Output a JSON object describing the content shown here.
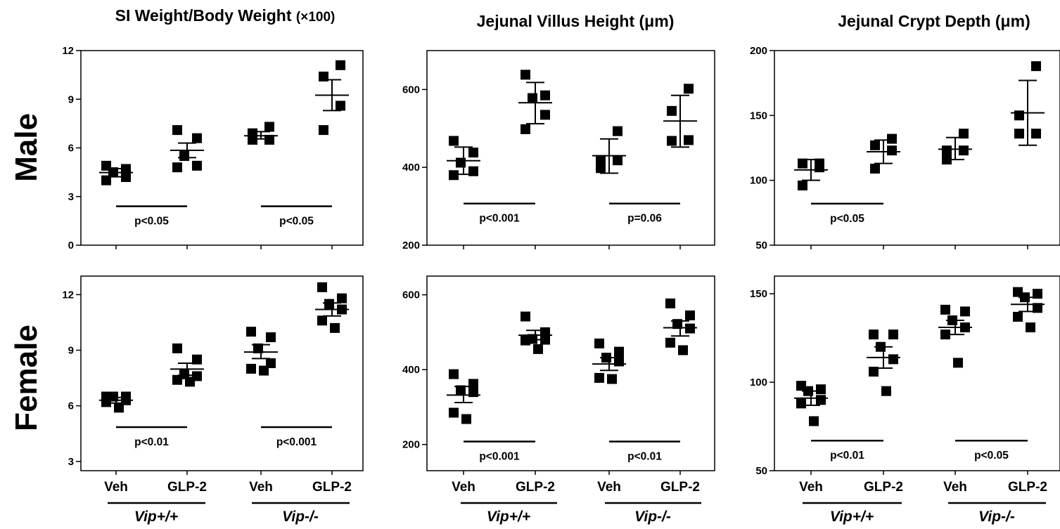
{
  "titles": [
    {
      "main": "SI Weight/Body Weight ",
      "suffix": "(×100)"
    },
    {
      "main": "Jejunal Villus Height (μm)",
      "suffix": ""
    },
    {
      "main": "Jejunal Crypt Depth (μm)",
      "suffix": ""
    }
  ],
  "row_labels": [
    "Male",
    "Female"
  ],
  "category_labels": [
    "Veh",
    "GLP-2",
    "Veh",
    "GLP-2"
  ],
  "genotype_labels": [
    "Vip+/+",
    "Vip-/-"
  ],
  "colors": {
    "marker": "#000000",
    "axis": "#000000",
    "background": "#ffffff"
  },
  "chart_data": [
    {
      "type": "scatter",
      "row": "Male",
      "column": "SI Weight/Body Weight (×100)",
      "ylim": [
        0,
        12
      ],
      "yticks": [
        0,
        3,
        6,
        9,
        12
      ],
      "categories": [
        "Veh",
        "GLP-2",
        "Veh",
        "GLP-2"
      ],
      "groups": [
        {
          "points": [
            4.5,
            4.7,
            4.9,
            4.0,
            4.2
          ],
          "mean": 4.48,
          "sem": [
            4.22,
            4.72
          ]
        },
        {
          "points": [
            6.6,
            7.1,
            5.5,
            4.8,
            4.9
          ],
          "mean": 5.85,
          "sem": [
            5.4,
            6.3
          ]
        },
        {
          "points": [
            6.9,
            7.3,
            6.5,
            6.5
          ],
          "mean": 6.75,
          "sem": [
            6.55,
            7.0
          ]
        },
        {
          "points": [
            10.4,
            11.1,
            8.6,
            7.1
          ],
          "mean": 9.25,
          "sem": [
            8.3,
            10.2
          ]
        }
      ],
      "comparisons": [
        {
          "groups": [
            0,
            1
          ],
          "label": "p<0.05",
          "y": 2.4
        },
        {
          "groups": [
            2,
            3
          ],
          "label": "p<0.05",
          "y": 2.4
        }
      ]
    },
    {
      "type": "scatter",
      "row": "Male",
      "column": "Jejunal Villus Height (μm)",
      "ylim": [
        200,
        700
      ],
      "yticks": [
        200,
        400,
        600
      ],
      "categories": [
        "Veh",
        "GLP-2",
        "Veh",
        "GLP-2"
      ],
      "groups": [
        {
          "points": [
            468,
            412,
            438,
            380,
            390
          ],
          "mean": 417,
          "sem": [
            382,
            452
          ]
        },
        {
          "points": [
            638,
            578,
            585,
            535,
            498
          ],
          "mean": 566,
          "sem": [
            512,
            618
          ]
        },
        {
          "points": [
            493,
            418,
            418,
            398
          ],
          "mean": 430,
          "sem": [
            385,
            473
          ]
        },
        {
          "points": [
            602,
            545,
            468,
            470
          ],
          "mean": 519,
          "sem": [
            452,
            585
          ]
        }
      ],
      "comparisons": [
        {
          "groups": [
            0,
            1
          ],
          "label": "p<0.001",
          "y": 307
        },
        {
          "groups": [
            2,
            3
          ],
          "label": "p=0.06",
          "y": 307
        }
      ]
    },
    {
      "type": "scatter",
      "row": "Male",
      "column": "Jejunal Crypt Depth (μm)",
      "ylim": [
        50,
        200
      ],
      "yticks": [
        50,
        100,
        150,
        200
      ],
      "categories": [
        "Veh",
        "GLP-2",
        "Veh",
        "GLP-2"
      ],
      "groups": [
        {
          "points": [
            113,
            110,
            113,
            96
          ],
          "mean": 108,
          "sem": [
            100,
            116
          ]
        },
        {
          "points": [
            127,
            132,
            123,
            109
          ],
          "mean": 122,
          "sem": [
            113,
            131
          ]
        },
        {
          "points": [
            123,
            136,
            123,
            116
          ],
          "mean": 124,
          "sem": [
            116,
            133
          ]
        },
        {
          "points": [
            188,
            150,
            136,
            136
          ],
          "mean": 152,
          "sem": [
            127,
            177
          ]
        }
      ],
      "comparisons": [
        {
          "groups": [
            0,
            1
          ],
          "label": "p<0.05",
          "y": 82
        }
      ]
    },
    {
      "type": "scatter",
      "row": "Female",
      "column": "SI Weight/Body Weight (×100)",
      "ylim": [
        2.5,
        13
      ],
      "yticks": [
        3,
        6,
        9,
        12
      ],
      "categories": [
        "Veh",
        "GLP-2",
        "Veh",
        "GLP-2"
      ],
      "groups": [
        {
          "points": [
            6.5,
            6.5,
            6.5,
            6.3,
            6.2,
            5.9
          ],
          "mean": 6.3,
          "sem": [
            6.15,
            6.45
          ]
        },
        {
          "points": [
            9.1,
            8.5,
            7.7,
            7.6,
            7.3,
            7.4
          ],
          "mean": 7.98,
          "sem": [
            7.65,
            8.3
          ]
        },
        {
          "points": [
            10.0,
            9.7,
            9.1,
            8.3,
            8.0,
            7.9
          ],
          "mean": 8.9,
          "sem": [
            8.55,
            9.3
          ]
        },
        {
          "points": [
            12.4,
            11.5,
            11.8,
            11.2,
            10.2,
            10.6
          ],
          "mean": 11.2,
          "sem": [
            10.85,
            11.55
          ]
        }
      ],
      "comparisons": [
        {
          "groups": [
            0,
            1
          ],
          "label": "p<0.01",
          "y": 4.85
        },
        {
          "groups": [
            2,
            3
          ],
          "label": "p<0.001",
          "y": 4.85
        }
      ]
    },
    {
      "type": "scatter",
      "row": "Female",
      "column": "Jejunal Villus Height (μm)",
      "ylim": [
        130,
        650
      ],
      "yticks": [
        200,
        400,
        600
      ],
      "categories": [
        "Veh",
        "GLP-2",
        "Veh",
        "GLP-2"
      ],
      "groups": [
        {
          "points": [
            388,
            362,
            345,
            340,
            285,
            268
          ],
          "mean": 332,
          "sem": [
            312,
            355
          ]
        },
        {
          "points": [
            542,
            500,
            480,
            478,
            455,
            482
          ],
          "mean": 492,
          "sem": [
            480,
            505
          ]
        },
        {
          "points": [
            470,
            448,
            432,
            422,
            378,
            375
          ],
          "mean": 415,
          "sem": [
            398,
            432
          ]
        },
        {
          "points": [
            577,
            545,
            522,
            510,
            472,
            452
          ],
          "mean": 512,
          "sem": [
            490,
            530
          ]
        }
      ],
      "comparisons": [
        {
          "groups": [
            0,
            1
          ],
          "label": "p<0.001",
          "y": 208
        },
        {
          "groups": [
            2,
            3
          ],
          "label": "p<0.01",
          "y": 208
        }
      ]
    },
    {
      "type": "scatter",
      "row": "Female",
      "column": "Jejunal Crypt Depth (μm)",
      "ylim": [
        50,
        160
      ],
      "yticks": [
        50,
        100,
        150
      ],
      "categories": [
        "Veh",
        "GLP-2",
        "Veh",
        "GLP-2"
      ],
      "groups": [
        {
          "points": [
            98,
            96,
            95,
            90,
            88,
            78
          ],
          "mean": 91,
          "sem": [
            87,
            95
          ]
        },
        {
          "points": [
            127,
            127,
            120,
            113,
            106,
            95
          ],
          "mean": 114,
          "sem": [
            108,
            120
          ]
        },
        {
          "points": [
            140,
            141,
            135,
            131,
            127,
            111
          ],
          "mean": 131,
          "sem": [
            127,
            135
          ]
        },
        {
          "points": [
            151,
            148,
            150,
            142,
            137,
            131
          ],
          "mean": 144,
          "sem": [
            140,
            148
          ]
        }
      ],
      "comparisons": [
        {
          "groups": [
            0,
            1
          ],
          "label": "p<0.01",
          "y": 67
        },
        {
          "groups": [
            2,
            3
          ],
          "label": "p<0.05",
          "y": 67
        }
      ]
    }
  ]
}
